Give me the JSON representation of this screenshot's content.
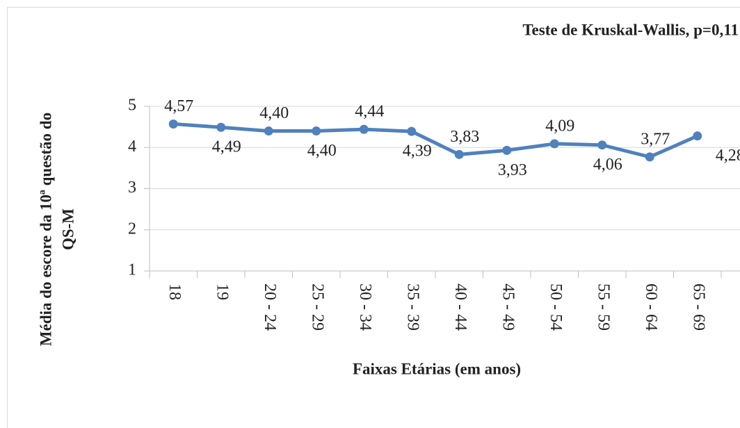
{
  "chart_data": {
    "type": "line",
    "annotation": "Teste de Kruskal-Wallis, p=0,11",
    "ylabel": [
      "Média do escore da 10ª questão do",
      "QS-M"
    ],
    "xlabel": "Faixas Etárias (em anos)",
    "categories": [
      "18",
      "19",
      "20 - 24",
      "25 - 29",
      "30 - 34",
      "35 - 39",
      "40 - 44",
      "45 - 49",
      "50 - 54",
      "55 - 59",
      "60 - 64",
      "65 - 69"
    ],
    "values": [
      4.57,
      4.49,
      4.4,
      4.4,
      4.44,
      4.39,
      3.83,
      3.93,
      4.09,
      4.06,
      3.77,
      4.28
    ],
    "value_labels": [
      "4,57",
      "4,49",
      "4,40",
      "4,40",
      "4,44",
      "4,39",
      "3,83",
      "3,93",
      "4,09",
      "4,06",
      "3,77",
      "4,28"
    ],
    "color": "#4f81bd",
    "ylim": [
      1,
      5
    ],
    "yticks": [
      1,
      2,
      3,
      4,
      5
    ],
    "grid": true
  }
}
